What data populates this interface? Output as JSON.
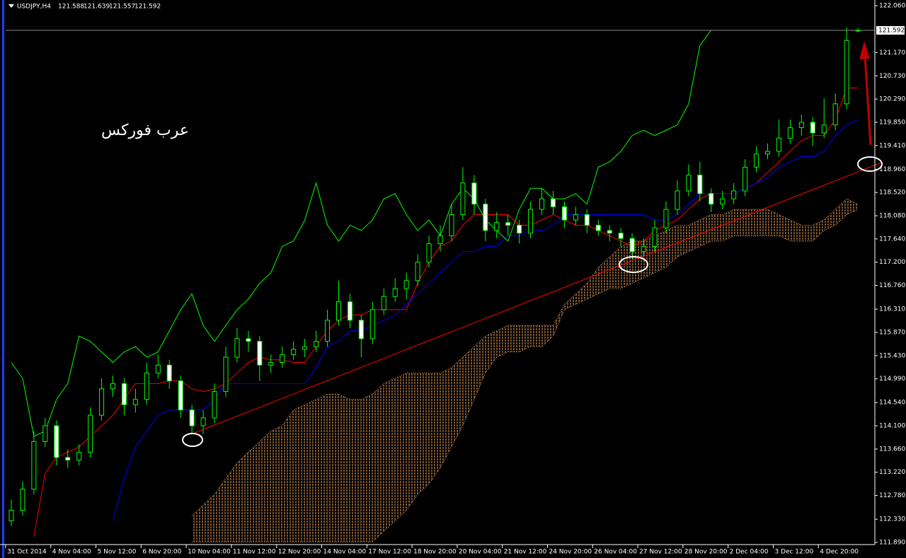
{
  "chart_data": {
    "type": "candlestick",
    "symbol": "USDJPY,H4",
    "watermark": "عرب فوركس",
    "candle_color": "#00ff00",
    "bull_body": "#000000",
    "bear_body": "#ffffff",
    "price_line_color": "#8c8c8c",
    "open": [
      112.3,
      112.5,
      112.9,
      113.8,
      114.1,
      113.5,
      113.45,
      113.6,
      114.3,
      114.8,
      114.9,
      114.5,
      114.6,
      115.1,
      115.25,
      114.95,
      114.4,
      114.1,
      114.25,
      114.75,
      115.4,
      115.75,
      115.7,
      115.25,
      115.3,
      115.45,
      115.55,
      115.6,
      115.7,
      116.1,
      116.45,
      116.1,
      115.75,
      116.3,
      116.55,
      116.7,
      116.85,
      117.2,
      117.55,
      117.7,
      118.1,
      118.7,
      118.3,
      117.8,
      117.95,
      117.9,
      117.75,
      118.2,
      118.4,
      118.25,
      118.0,
      118.1,
      117.9,
      117.8,
      117.75,
      117.65,
      117.4,
      117.5,
      117.85,
      118.2,
      118.55,
      118.85,
      118.5,
      118.3,
      118.4,
      118.55,
      119.0,
      119.25,
      119.3,
      119.55,
      119.75,
      119.85,
      119.65,
      119.8,
      120.2,
      121.588
    ],
    "high": [
      112.7,
      113.05,
      114.0,
      114.25,
      114.2,
      113.65,
      113.75,
      114.45,
      115.0,
      115.05,
      115.0,
      114.8,
      115.3,
      115.45,
      115.35,
      115.05,
      114.5,
      114.4,
      114.9,
      115.6,
      115.95,
      115.9,
      115.8,
      115.45,
      115.6,
      115.7,
      115.75,
      115.9,
      116.3,
      116.85,
      116.6,
      116.2,
      116.45,
      116.7,
      116.9,
      117.0,
      117.35,
      117.7,
      117.9,
      118.3,
      119.0,
      118.85,
      118.4,
      118.15,
      118.1,
      118.0,
      118.35,
      118.6,
      118.55,
      118.35,
      118.25,
      118.2,
      118.0,
      117.9,
      117.85,
      117.75,
      117.65,
      118.0,
      118.35,
      118.75,
      119.05,
      119.1,
      118.6,
      118.55,
      118.7,
      119.15,
      119.4,
      119.45,
      119.9,
      119.9,
      120.0,
      119.95,
      120.3,
      120.4,
      121.65,
      121.639
    ],
    "low": [
      112.2,
      112.4,
      112.8,
      113.7,
      113.35,
      113.3,
      113.35,
      113.5,
      114.2,
      114.65,
      114.3,
      114.35,
      114.5,
      115.0,
      114.8,
      114.25,
      113.95,
      113.95,
      114.15,
      114.65,
      115.3,
      115.5,
      114.95,
      115.1,
      115.2,
      115.35,
      115.4,
      115.5,
      115.6,
      116.0,
      115.95,
      115.4,
      115.65,
      116.2,
      116.45,
      116.5,
      116.75,
      117.1,
      117.4,
      117.6,
      118.0,
      118.1,
      117.6,
      117.65,
      117.7,
      117.55,
      117.65,
      118.1,
      118.1,
      117.85,
      117.9,
      117.75,
      117.7,
      117.6,
      117.5,
      117.25,
      117.3,
      117.4,
      117.75,
      118.1,
      118.45,
      118.35,
      118.15,
      118.2,
      118.3,
      118.45,
      118.9,
      119.15,
      119.2,
      119.45,
      119.6,
      119.4,
      119.55,
      119.7,
      120.1,
      121.557
    ],
    "close": [
      112.5,
      112.9,
      113.8,
      114.1,
      113.5,
      113.45,
      113.6,
      114.3,
      114.8,
      114.9,
      114.5,
      114.6,
      115.1,
      115.25,
      114.95,
      114.4,
      114.1,
      114.25,
      114.75,
      115.4,
      115.75,
      115.7,
      115.25,
      115.3,
      115.45,
      115.55,
      115.6,
      115.7,
      116.1,
      116.45,
      116.1,
      115.75,
      116.3,
      116.55,
      116.7,
      116.85,
      117.2,
      117.55,
      117.7,
      118.1,
      118.7,
      118.3,
      117.8,
      117.95,
      117.9,
      117.75,
      118.2,
      118.4,
      118.25,
      118.0,
      118.1,
      117.9,
      117.8,
      117.75,
      117.65,
      117.4,
      117.5,
      117.85,
      118.2,
      118.55,
      118.85,
      118.5,
      118.3,
      118.4,
      118.55,
      119.0,
      119.25,
      119.3,
      119.55,
      119.75,
      119.85,
      119.65,
      119.8,
      120.2,
      121.4,
      121.592
    ],
    "series": [
      {
        "color": "#ff0000",
        "values": [
          null,
          null,
          112.0,
          113.2,
          113.5,
          113.6,
          113.7,
          113.9,
          114.1,
          114.3,
          114.6,
          114.9,
          114.9,
          114.9,
          114.95,
          114.95,
          114.8,
          114.75,
          114.8,
          114.9,
          115.1,
          115.3,
          115.4,
          115.35,
          115.35,
          115.3,
          115.3,
          115.6,
          115.9,
          116.1,
          116.2,
          116.2,
          116.3,
          116.3,
          116.3,
          116.3,
          116.8,
          117.2,
          117.5,
          117.6,
          117.9,
          118.1,
          118.1,
          118.1,
          118.1,
          117.9,
          117.9,
          118.0,
          118.1,
          118.0,
          117.9,
          117.9,
          117.8,
          117.7,
          117.6,
          117.5,
          117.6,
          117.8,
          117.9,
          118.0,
          118.2,
          118.4,
          118.5,
          118.5,
          118.5,
          118.6,
          118.7,
          118.9,
          119.1,
          119.3,
          119.5,
          119.6,
          119.6,
          119.9,
          120.5,
          120.5
        ]
      },
      {
        "color": "#0000ff",
        "values": [
          null,
          null,
          null,
          null,
          null,
          null,
          null,
          null,
          null,
          112.3,
          113.1,
          113.7,
          114.0,
          114.3,
          114.4,
          114.4,
          114.4,
          114.4,
          114.6,
          114.9,
          114.9,
          114.9,
          114.9,
          114.9,
          114.9,
          114.9,
          114.9,
          115.2,
          115.6,
          115.7,
          115.9,
          115.9,
          116.0,
          116.1,
          116.2,
          116.4,
          116.6,
          116.8,
          117.0,
          117.2,
          117.4,
          117.4,
          117.5,
          117.5,
          117.7,
          117.7,
          117.8,
          117.8,
          117.9,
          118.1,
          118.1,
          118.1,
          118.1,
          118.1,
          118.1,
          118.1,
          118.1,
          118.0,
          118.0,
          118.1,
          118.3,
          118.5,
          118.5,
          118.5,
          118.5,
          118.6,
          118.7,
          118.8,
          119.0,
          119.1,
          119.2,
          119.2,
          119.3,
          119.6,
          119.8,
          119.9
        ]
      },
      {
        "color": "#00ff00",
        "values": [
          115.3,
          115.0,
          113.9,
          114.0,
          114.6,
          114.9,
          115.8,
          115.7,
          115.5,
          115.3,
          115.5,
          115.6,
          115.4,
          115.5,
          115.9,
          116.3,
          116.6,
          116.0,
          115.7,
          116.0,
          116.3,
          116.5,
          116.8,
          117.0,
          117.5,
          117.6,
          118.0,
          118.7,
          117.9,
          117.6,
          117.9,
          117.8,
          118.0,
          118.4,
          118.5,
          118.1,
          117.8,
          118.0,
          117.7,
          118.3,
          118.6,
          118.4,
          118.0,
          117.8,
          117.6,
          118.2,
          118.6,
          118.6,
          118.4,
          118.4,
          118.5,
          118.3,
          119.0,
          119.1,
          119.3,
          119.6,
          119.7,
          119.6,
          119.7,
          119.8,
          120.2,
          121.3,
          121.6,
          null,
          null,
          null,
          null,
          null,
          null,
          null,
          null,
          null,
          null,
          null,
          null,
          null
        ]
      }
    ],
    "cloud": {
      "color": "#f4a460",
      "upper": [
        null,
        null,
        null,
        null,
        null,
        null,
        null,
        null,
        null,
        null,
        null,
        null,
        null,
        null,
        null,
        null,
        112.4,
        112.6,
        112.8,
        113.1,
        113.4,
        113.6,
        113.8,
        114.0,
        114.1,
        114.4,
        114.5,
        114.6,
        114.7,
        114.7,
        114.6,
        114.6,
        114.7,
        114.9,
        115.0,
        115.1,
        115.1,
        115.1,
        115.1,
        115.2,
        115.4,
        115.6,
        115.8,
        115.9,
        116.0,
        116.0,
        116.0,
        116.0,
        116.0,
        116.4,
        116.6,
        116.8,
        117.1,
        117.3,
        117.5,
        117.6,
        117.6,
        117.7,
        117.8,
        117.9,
        117.9,
        118.0,
        118.1,
        118.1,
        118.2,
        118.2,
        118.2,
        118.2,
        118.1,
        118.0,
        117.9,
        117.9,
        118.0,
        118.2,
        118.4,
        118.3
      ],
      "lower": [
        null,
        null,
        null,
        null,
        null,
        null,
        null,
        null,
        null,
        null,
        null,
        null,
        null,
        null,
        null,
        null,
        111.9,
        111.9,
        111.9,
        111.9,
        111.9,
        111.9,
        111.9,
        111.9,
        111.9,
        111.9,
        111.9,
        111.9,
        111.9,
        111.9,
        111.9,
        111.9,
        111.9,
        112.1,
        112.3,
        112.5,
        112.8,
        113.0,
        113.3,
        113.7,
        114.1,
        114.6,
        115.1,
        115.4,
        115.5,
        115.5,
        115.6,
        115.6,
        115.8,
        116.3,
        116.4,
        116.5,
        116.6,
        116.7,
        116.7,
        116.8,
        116.9,
        117.0,
        117.1,
        117.3,
        117.4,
        117.5,
        117.6,
        117.6,
        117.7,
        117.7,
        117.7,
        117.7,
        117.7,
        117.6,
        117.6,
        117.6,
        117.8,
        117.9,
        118.1,
        118.2
      ]
    },
    "xlim": [
      -0.5,
      76.5
    ],
    "xticks": [
      {
        "value": 0,
        "label": "31 Oct 2014"
      },
      {
        "value": 4,
        "label": "4 Nov 04:00"
      },
      {
        "value": 8,
        "label": "5 Nov 12:00"
      },
      {
        "value": 12,
        "label": "6 Nov 20:00"
      },
      {
        "value": 16,
        "label": "10 Nov 04:00"
      },
      {
        "value": 20,
        "label": "11 Nov 12:00"
      },
      {
        "value": 24,
        "label": "12 Nov 20:00"
      },
      {
        "value": 28,
        "label": "14 Nov 04:00"
      },
      {
        "value": 32,
        "label": "17 Nov 12:00"
      },
      {
        "value": 36,
        "label": "18 Nov 20:00"
      },
      {
        "value": 40,
        "label": "20 Nov 04:00"
      },
      {
        "value": 44,
        "label": "21 Nov 12:00"
      },
      {
        "value": 48,
        "label": "24 Nov 20:00"
      },
      {
        "value": 52,
        "label": "26 Nov 04:00"
      },
      {
        "value": 56,
        "label": "27 Nov 12:00"
      },
      {
        "value": 60,
        "label": "28 Nov 20:00"
      },
      {
        "value": 64,
        "label": "2 Dec 04:00"
      },
      {
        "value": 68,
        "label": "3 Dec 12:00"
      },
      {
        "value": 72,
        "label": "4 Dec 20:00"
      }
    ],
    "ylim": [
      111.89,
      122.06
    ],
    "yticks": [
      {
        "value": 122.06,
        "label": "122.060"
      },
      {
        "value": 121.17,
        "label": "121.170"
      },
      {
        "value": 120.73,
        "label": "120.730"
      },
      {
        "value": 120.29,
        "label": "120.290"
      },
      {
        "value": 119.85,
        "label": "119.850"
      },
      {
        "value": 119.41,
        "label": "119.410"
      },
      {
        "value": 118.96,
        "label": "118.960"
      },
      {
        "value": 118.52,
        "label": "118.520"
      },
      {
        "value": 118.08,
        "label": "118.080"
      },
      {
        "value": 117.64,
        "label": "117.640"
      },
      {
        "value": 117.2,
        "label": "117.200"
      },
      {
        "value": 116.76,
        "label": "116.760"
      },
      {
        "value": 116.31,
        "label": "116.310"
      },
      {
        "value": 115.87,
        "label": "115.870"
      },
      {
        "value": 115.43,
        "label": "115.430"
      },
      {
        "value": 114.99,
        "label": "114.990"
      },
      {
        "value": 114.54,
        "label": "114.540"
      },
      {
        "value": 114.1,
        "label": "114.100"
      },
      {
        "value": 113.66,
        "label": "113.660"
      },
      {
        "value": 113.22,
        "label": "113.220"
      },
      {
        "value": 112.78,
        "label": "112.780"
      },
      {
        "value": 112.33,
        "label": "112.330"
      },
      {
        "value": 111.89,
        "label": "111.890"
      }
    ]
  }
}
